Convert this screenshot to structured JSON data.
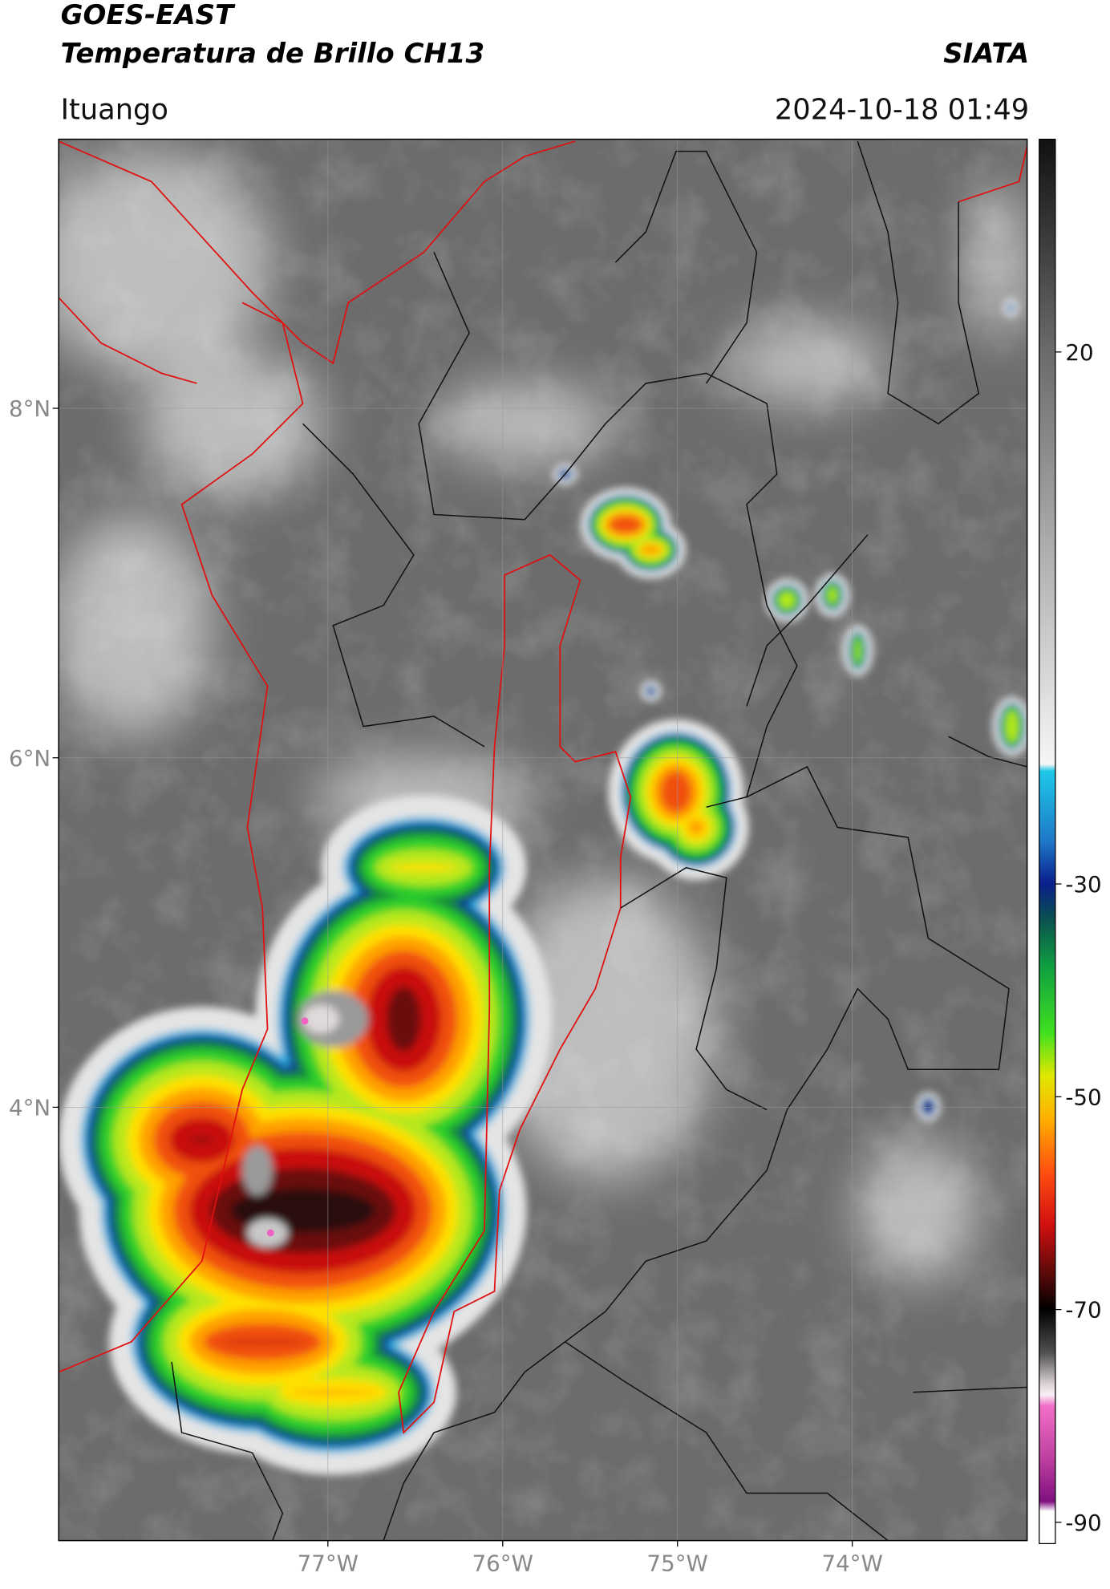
{
  "header": {
    "title": "GOES-EAST",
    "subtitle": "Temperatura de Brillo CH13",
    "source": "SIATA",
    "location": "Ituango",
    "datetime": "2024-10-18 01:49"
  },
  "map": {
    "lat_lim": [
      1.52,
      9.54
    ],
    "lon_lim": [
      -78.54,
      -73.0
    ],
    "lat_ticks": [
      {
        "value": 8,
        "label": "8°N"
      },
      {
        "value": 6,
        "label": "6°N"
      },
      {
        "value": 4,
        "label": "4°N"
      }
    ],
    "lon_ticks": [
      {
        "value": -77,
        "label": "77°W"
      },
      {
        "value": -76,
        "label": "76°W"
      },
      {
        "value": -75,
        "label": "75°W"
      },
      {
        "value": -74,
        "label": "74°W"
      }
    ],
    "grid": true
  },
  "colorbar": {
    "lim": [
      -92,
      40
    ],
    "ticks": [
      20,
      -30,
      -50,
      -70,
      -90
    ]
  }
}
